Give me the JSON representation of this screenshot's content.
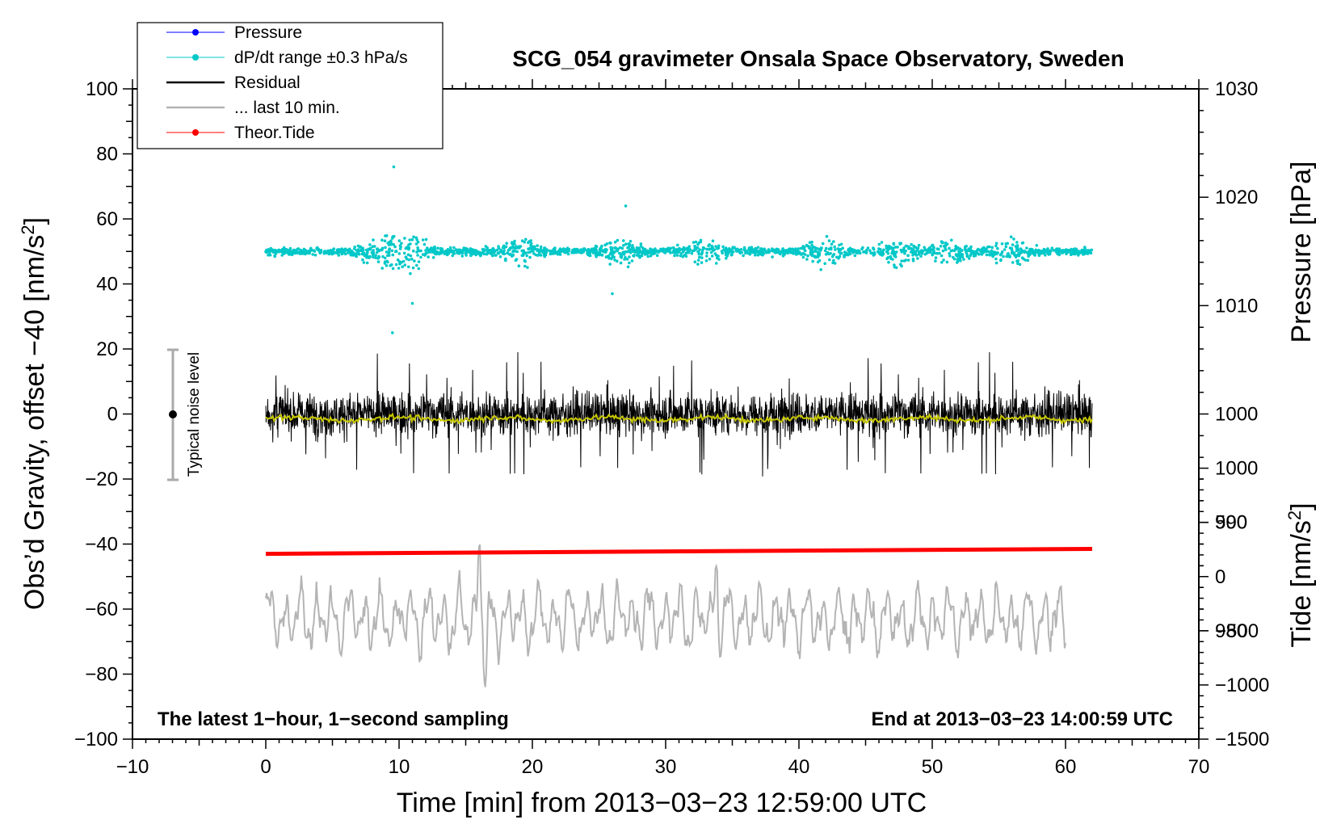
{
  "chart_data": {
    "type": "scatter",
    "title": "SCG_054 gravimeter Onsala Space Observatory, Sweden",
    "xlabel": "Time [min] from 2013−03−23 12:59:00 UTC",
    "ylabel": "Obs’d Gravity, offset −40 [nm/s",
    "ylabel_sup": "2",
    "ylabel_end": "]",
    "pressure_label": "Pressure [hPa]",
    "tide_label": "Tide [nm/s",
    "tide_label_sup": "2",
    "tide_label_end": "]",
    "xlim": [
      -10,
      70
    ],
    "ylim": [
      -100,
      100
    ],
    "pressure_lim": [
      970,
      1030
    ],
    "tide_lim": [
      -1500,
      4500
    ],
    "x_ticks": [
      "−10",
      "0",
      "10",
      "20",
      "30",
      "40",
      "50",
      "60",
      "70"
    ],
    "x_tick_values": [
      -10,
      0,
      10,
      20,
      30,
      40,
      50,
      60,
      70
    ],
    "y_ticks": [
      "−100",
      "−80",
      "−60",
      "−40",
      "−20",
      "0",
      "20",
      "40",
      "60",
      "80",
      "100"
    ],
    "y_tick_values": [
      -100,
      -80,
      -60,
      -40,
      -20,
      0,
      20,
      40,
      60,
      80,
      100
    ],
    "pressure_ticks": [
      "980",
      "990",
      "1000",
      "1010",
      "1020",
      "1030"
    ],
    "pressure_tick_values": [
      980,
      990,
      1000,
      1010,
      1020,
      1030
    ],
    "tide_ticks": [
      "−1500",
      "−1000",
      "−500",
      "0",
      "500",
      "1000"
    ],
    "tide_tick_values": [
      -1500,
      -1000,
      -500,
      0,
      500,
      1000
    ],
    "legend_placement": "top-left",
    "grid": false,
    "series": [
      {
        "name": "Pressure",
        "color": "#0000ff",
        "axis": "pressure",
        "values": []
      },
      {
        "name": "dP/dt range ±0.3 hPa/s",
        "color": "#00c8c8",
        "axis": "gravity",
        "x_range": [
          0,
          62
        ],
        "center": 50,
        "spread": 3,
        "bursts": [
          8.5,
          10,
          11,
          19,
          26.5,
          33,
          42,
          47.5,
          51.5,
          56
        ],
        "outliers": [
          {
            "x": 9.6,
            "y": 76
          },
          {
            "x": 11,
            "y": 34
          },
          {
            "x": 9.5,
            "y": 25
          },
          {
            "x": 27,
            "y": 64
          },
          {
            "x": 26,
            "y": 37
          }
        ]
      },
      {
        "name": "Residual",
        "color": "#000000",
        "axis": "gravity",
        "x_range": [
          0,
          62
        ],
        "center": 0,
        "typical_range": [
          -15,
          15
        ],
        "max": 22,
        "min": -21
      },
      {
        "name": "... last 10 min.",
        "color": "#b4b4b4",
        "axis": "gravity",
        "x_range": [
          0,
          60
        ],
        "center": -63,
        "typical_range": [
          -75,
          -52
        ],
        "peaks": [
          {
            "x": 16,
            "y": -40
          },
          {
            "x": 16.5,
            "y": -82
          },
          {
            "x": 33.8,
            "y": -44
          }
        ]
      },
      {
        "name": "Theor.Tide",
        "color": "#ff0000",
        "axis": "gravity",
        "x": [
          0,
          62
        ],
        "values": [
          -43,
          -41.5
        ]
      },
      {
        "name": "",
        "color": "#c8c800",
        "axis": "gravity",
        "x_range": [
          0,
          62
        ],
        "center": -1.5
      }
    ],
    "annotations": {
      "left_note": "The latest 1−hour, 1−second sampling",
      "right_note": "End at 2013−03−23 14:00:59 UTC",
      "noise_label": "Typical noise level",
      "noise_x": -7,
      "noise_range": [
        -20,
        20
      ]
    }
  }
}
